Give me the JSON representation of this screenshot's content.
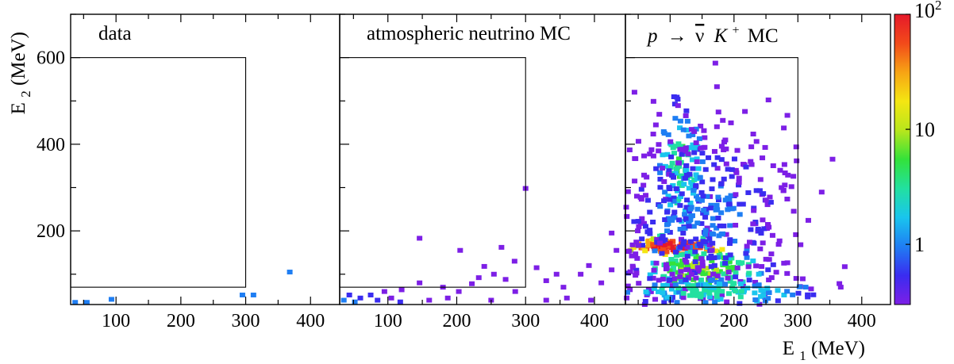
{
  "chart_data": {
    "type": "heatmap",
    "xlabel": "E1 (MeV)",
    "xlabel_main": "E",
    "xlabel_sub": "1",
    "xlabel_unit": " (MeV)",
    "ylabel_main": "E",
    "ylabel_sub": "2",
    "ylabel_unit": " (MeV)",
    "xlim": [
      30,
      445
    ],
    "ylim": [
      30,
      700
    ],
    "x_ticks": [
      "100",
      "200",
      "300",
      "400"
    ],
    "x_tick_values": [
      100,
      200,
      300,
      400
    ],
    "y_ticks": [
      "200",
      "400",
      "600"
    ],
    "y_tick_values": [
      200,
      400,
      600
    ],
    "colorbar": {
      "scale": "log",
      "range": [
        0.3,
        100
      ],
      "tick_labels": [
        "1",
        "10",
        "10²"
      ],
      "tick_values": [
        1,
        10,
        100
      ],
      "colors": [
        "#7d1fe6",
        "#3a2cf0",
        "#1f7ef3",
        "#19c5ee",
        "#22e0a0",
        "#33e23a",
        "#b8e61c",
        "#f4e612",
        "#f7a414",
        "#f24a1a",
        "#e6192a"
      ]
    },
    "signal_box": {
      "x": [
        30,
        300
      ],
      "y": [
        70,
        600
      ]
    },
    "panels": [
      {
        "title": "data",
        "points": [
          {
            "x": 37,
            "y": 35,
            "v": 1
          },
          {
            "x": 55,
            "y": 35,
            "v": 1
          },
          {
            "x": 93,
            "y": 42,
            "v": 1
          },
          {
            "x": 295,
            "y": 52,
            "v": 1
          },
          {
            "x": 312,
            "y": 52,
            "v": 1
          },
          {
            "x": 368,
            "y": 105,
            "v": 1
          }
        ]
      },
      {
        "title": "atmospheric neutrino MC",
        "points": [
          {
            "x": 300,
            "y": 298,
            "v": 0.5
          },
          {
            "x": 146,
            "y": 183,
            "v": 0.4
          },
          {
            "x": 205,
            "y": 155,
            "v": 0.4
          },
          {
            "x": 265,
            "y": 162,
            "v": 0.5
          },
          {
            "x": 284,
            "y": 130,
            "v": 0.4
          },
          {
            "x": 240,
            "y": 118,
            "v": 0.5
          },
          {
            "x": 232,
            "y": 92,
            "v": 0.4
          },
          {
            "x": 254,
            "y": 100,
            "v": 0.5
          },
          {
            "x": 222,
            "y": 78,
            "v": 0.4
          },
          {
            "x": 271,
            "y": 88,
            "v": 0.5
          },
          {
            "x": 285,
            "y": 60,
            "v": 0.4
          },
          {
            "x": 203,
            "y": 60,
            "v": 0.5
          },
          {
            "x": 180,
            "y": 70,
            "v": 0.4
          },
          {
            "x": 146,
            "y": 80,
            "v": 0.5
          },
          {
            "x": 120,
            "y": 64,
            "v": 0.4
          },
          {
            "x": 95,
            "y": 60,
            "v": 0.5
          },
          {
            "x": 75,
            "y": 52,
            "v": 0.6
          },
          {
            "x": 60,
            "y": 45,
            "v": 0.8
          },
          {
            "x": 44,
            "y": 52,
            "v": 0.7
          },
          {
            "x": 36,
            "y": 40,
            "v": 1
          },
          {
            "x": 52,
            "y": 36,
            "v": 0.9
          },
          {
            "x": 85,
            "y": 40,
            "v": 0.7
          },
          {
            "x": 105,
            "y": 45,
            "v": 0.5
          },
          {
            "x": 118,
            "y": 36,
            "v": 0.6
          },
          {
            "x": 160,
            "y": 40,
            "v": 0.4
          },
          {
            "x": 187,
            "y": 45,
            "v": 0.5
          },
          {
            "x": 250,
            "y": 40,
            "v": 0.4
          },
          {
            "x": 316,
            "y": 115,
            "v": 0.5
          },
          {
            "x": 330,
            "y": 85,
            "v": 0.4
          },
          {
            "x": 345,
            "y": 100,
            "v": 0.5
          },
          {
            "x": 355,
            "y": 70,
            "v": 0.4
          },
          {
            "x": 380,
            "y": 100,
            "v": 0.4
          },
          {
            "x": 392,
            "y": 120,
            "v": 0.5
          },
          {
            "x": 410,
            "y": 80,
            "v": 0.4
          },
          {
            "x": 425,
            "y": 110,
            "v": 0.5
          },
          {
            "x": 432,
            "y": 155,
            "v": 0.4
          },
          {
            "x": 425,
            "y": 195,
            "v": 0.4
          },
          {
            "x": 360,
            "y": 45,
            "v": 0.4
          },
          {
            "x": 395,
            "y": 40,
            "v": 0.4
          },
          {
            "x": 330,
            "y": 40,
            "v": 0.5
          }
        ]
      },
      {
        "title_p": "p",
        "title_arrow": "→",
        "title_nu": "ν",
        "title_k": "K",
        "title_plus": "+",
        "title_mc": "MC",
        "generator": {
          "clusters": [
            {
              "cx": 108,
              "cy": 163,
              "sx": 38,
              "sy": 10,
              "peak": 80,
              "n": 90
            },
            {
              "cx": 150,
              "cy": 110,
              "sx": 48,
              "sy": 30,
              "peak": 8,
              "n": 160
            },
            {
              "cx": 115,
              "cy": 340,
              "sx": 20,
              "sy": 80,
              "peak": 4,
              "n": 110
            },
            {
              "cx": 150,
              "cy": 240,
              "sx": 80,
              "sy": 110,
              "peak": 1,
              "n": 420
            },
            {
              "cx": 170,
              "cy": 60,
              "sx": 90,
              "sy": 18,
              "peak": 3,
              "n": 140
            }
          ]
        }
      }
    ]
  }
}
